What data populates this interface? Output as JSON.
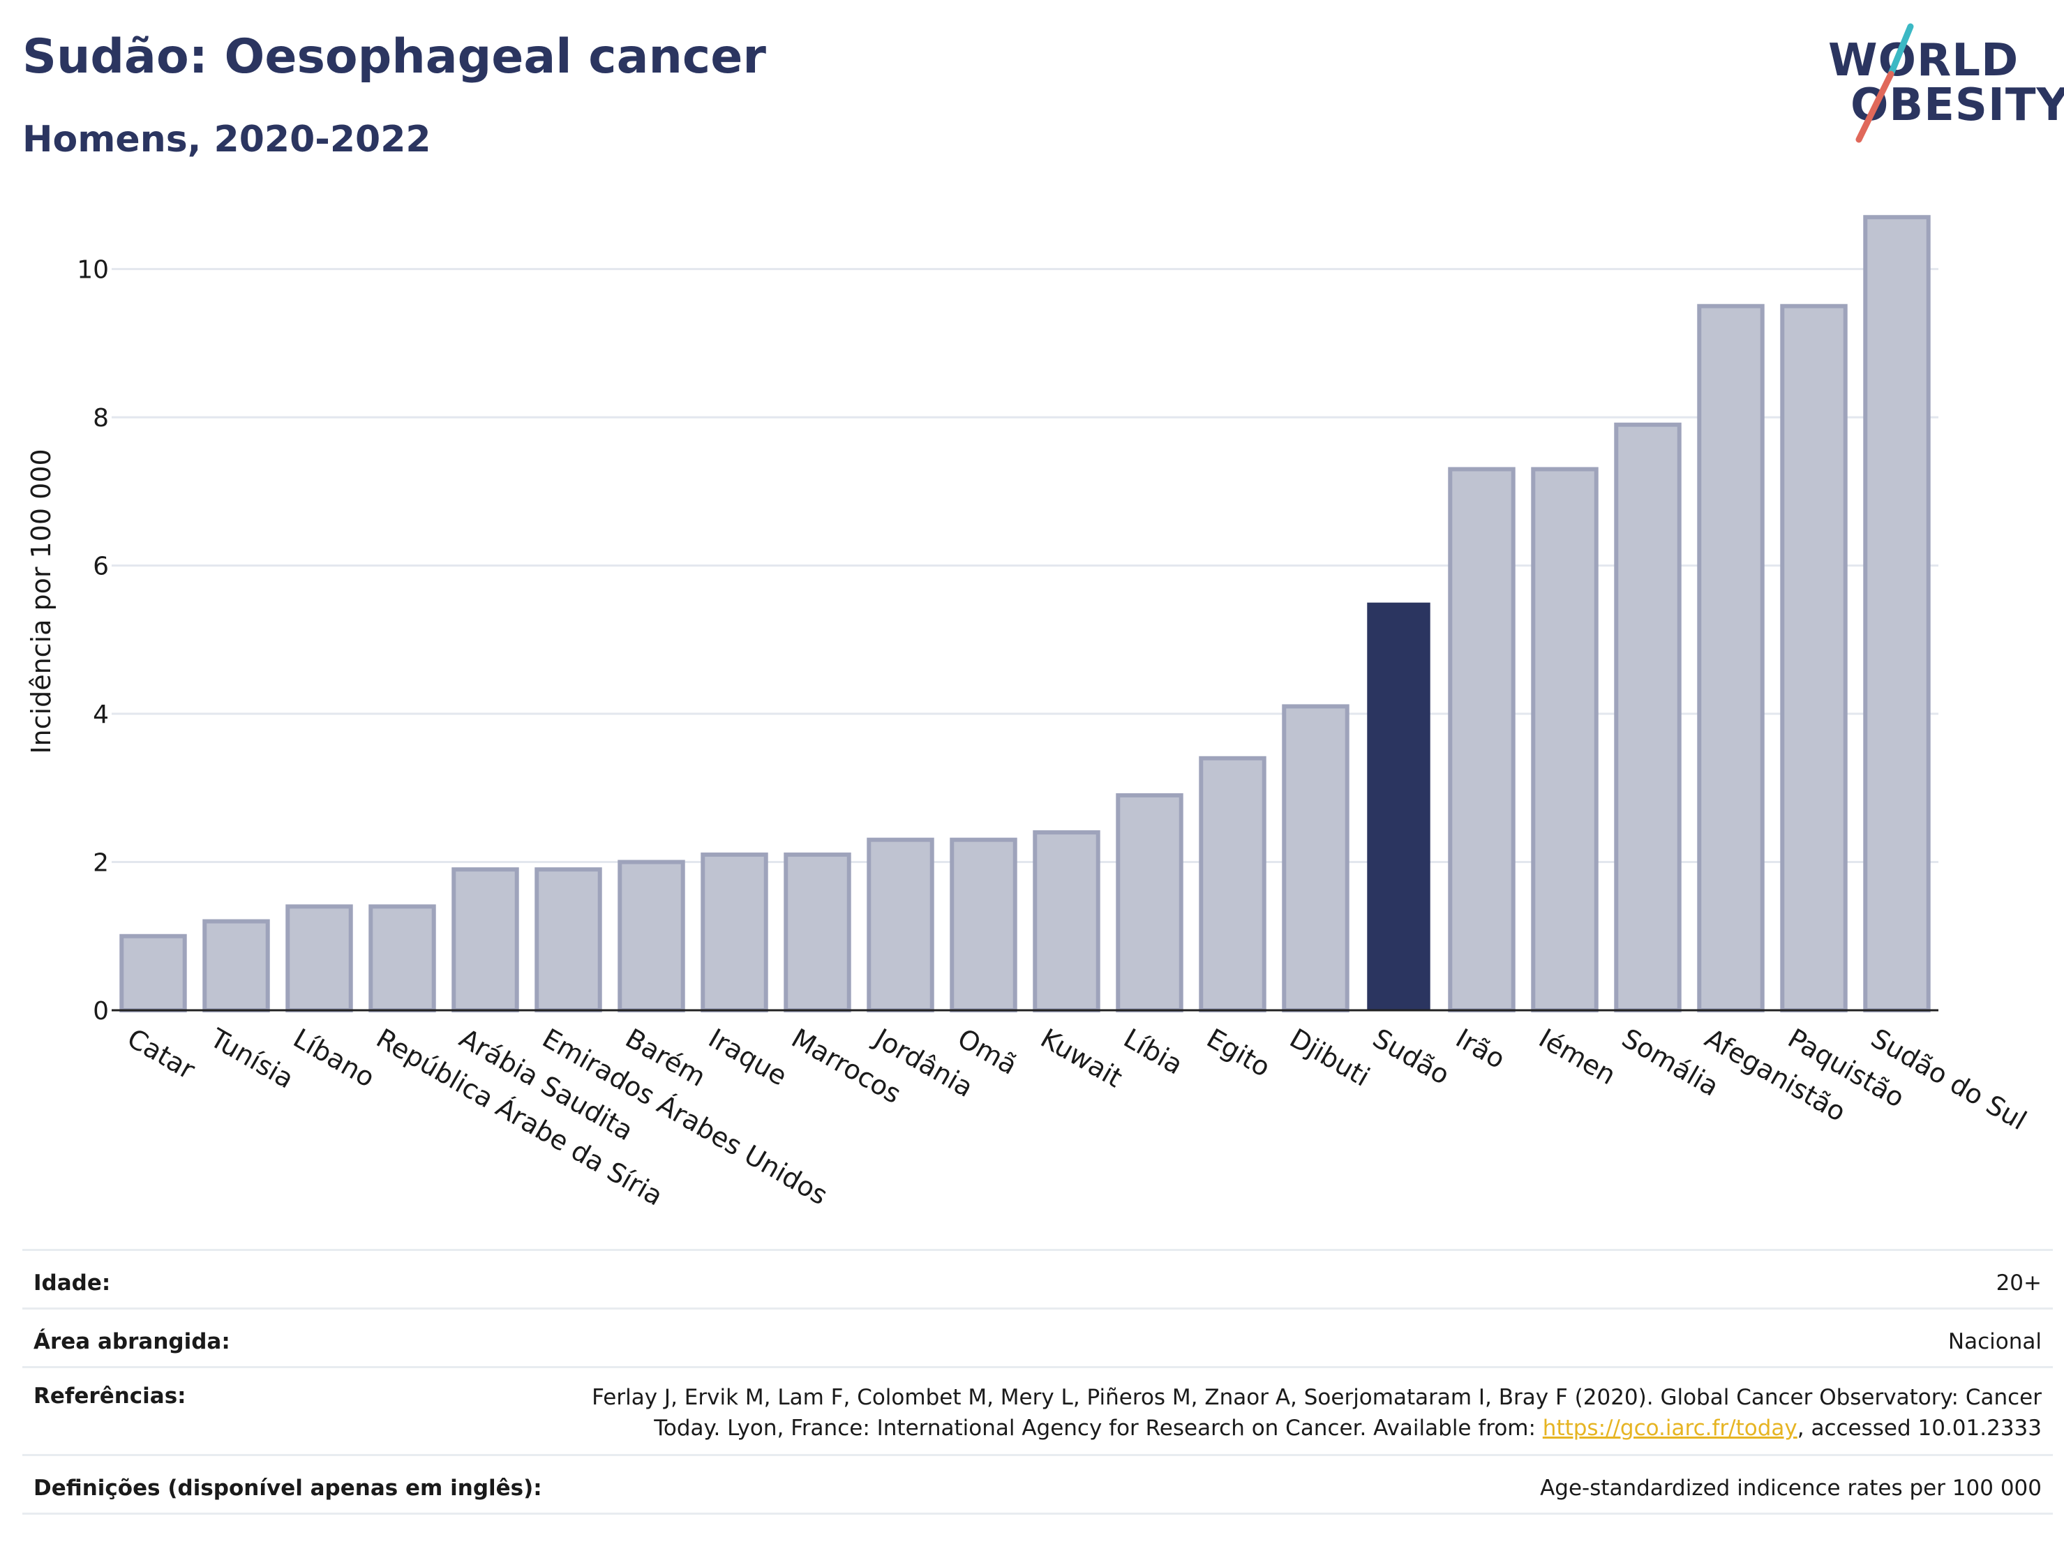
{
  "header": {
    "title": "Sudão: Oesophageal cancer",
    "subtitle": "Homens, 2020-2022"
  },
  "logo": {
    "line1": "WORLD",
    "line2": "OBESITY",
    "colors": {
      "text": "#2b3560",
      "slash_top": "#3bb8c4",
      "slash_bottom": "#e0685a"
    }
  },
  "colors": {
    "bar_default": "#bfc3d1",
    "bar_default_stroke": "#9ea3bb",
    "bar_highlight": "#2b3560",
    "grid": "#e3e7ee",
    "axis": "#222222",
    "link": "#e6b422"
  },
  "chart_data": {
    "type": "bar",
    "title": "Sudão: Oesophageal cancer",
    "subtitle": "Homens, 2020-2022",
    "xlabel": "",
    "ylabel": "Incidência por 100 000",
    "ylim": [
      0,
      10.9
    ],
    "yticks": [
      0,
      2,
      4,
      6,
      8,
      10
    ],
    "grid": true,
    "highlight": "Sudão",
    "categories": [
      "Catar",
      "Tunísia",
      "Líbano",
      "República Árabe da Síria",
      "Arábia Saudita",
      "Emirados Árabes Unidos",
      "Barém",
      "Iraque",
      "Marrocos",
      "Jordânia",
      "Omã",
      "Kuwait",
      "Líbia",
      "Egito",
      "Djibuti",
      "Sudão",
      "Irão",
      "Iémen",
      "Somália",
      "Afeganistão",
      "Paquistão",
      "Sudão do Sul"
    ],
    "values": [
      1.0,
      1.2,
      1.4,
      1.4,
      1.9,
      1.9,
      2.0,
      2.1,
      2.1,
      2.3,
      2.3,
      2.4,
      2.9,
      3.4,
      4.1,
      5.5,
      7.3,
      7.3,
      7.9,
      9.5,
      9.5,
      10.7
    ]
  },
  "info": {
    "age_label": "Idade:",
    "age_value": "20+",
    "area_label": "Área abrangida:",
    "area_value": "Nacional",
    "ref_label": "Referências:",
    "ref_line1": "Ferlay J, Ervik M, Lam F, Colombet M, Mery L, Piñeros M, Znaor A, Soerjomataram I, Bray F (2020). Global Cancer Observatory: Cancer",
    "ref_line2_before": "Today. Lyon, France: International Agency for Research on Cancer. Available from: ",
    "ref_link": "https://gco.iarc.fr/today",
    "ref_line2_after": ", accessed 10.01.2333",
    "def_label": "Definições (disponível apenas em inglês):",
    "def_value": "Age-standardized indicence rates per 100 000"
  }
}
